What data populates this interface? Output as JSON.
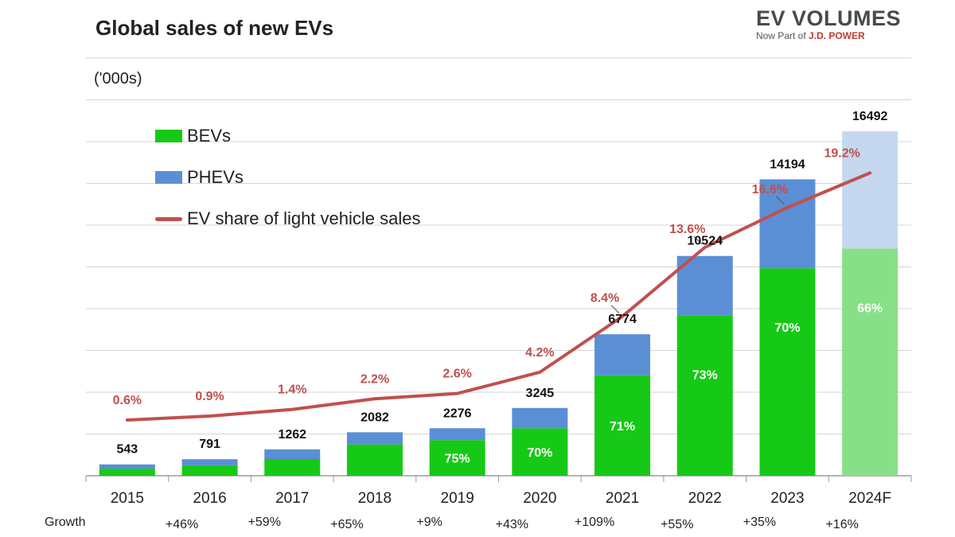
{
  "header": {
    "title": "Global sales of new EVs",
    "units": "('000s)"
  },
  "logo": {
    "main": "EV VOLUMES",
    "sub_prefix": "Now Part of ",
    "sub_brand": "J.D. POWER"
  },
  "legend": {
    "bev": "BEVs",
    "phev": "PHEVs",
    "share": "EV share of light vehicle sales"
  },
  "growth_label": "Growth",
  "colors": {
    "bev": "#16c916",
    "phev": "#5b8fd5",
    "bev_forecast": "#87e087",
    "phev_forecast": "#c5d8ef",
    "share_line": "#c0504d"
  },
  "chart_data": {
    "type": "bar",
    "title": "Global sales of new EVs",
    "subtitle": "('000s)",
    "categories": [
      "2015",
      "2016",
      "2017",
      "2018",
      "2019",
      "2020",
      "2021",
      "2022",
      "2023",
      "2024F"
    ],
    "totals": [
      543,
      791,
      1262,
      2082,
      2276,
      3245,
      6774,
      10524,
      14194,
      16492
    ],
    "total_labels": [
      "543",
      "791",
      "1262",
      "2082",
      "2276",
      "3245",
      "6774",
      "10524",
      "14194",
      "16492"
    ],
    "series": [
      {
        "name": "BEVs",
        "values": [
          340,
          500,
          800,
          1500,
          1707,
          2272,
          4810,
          7683,
          9936,
          10885
        ]
      },
      {
        "name": "PHEVs",
        "values": [
          203,
          291,
          462,
          582,
          569,
          973,
          1964,
          2841,
          4258,
          5607
        ]
      }
    ],
    "bev_share_labels": [
      "",
      "",
      "",
      "",
      "75%",
      "70%",
      "71%",
      "73%",
      "70%",
      "66%"
    ],
    "ev_share": {
      "name": "EV share of light vehicle sales",
      "values": [
        0.6,
        0.9,
        1.4,
        2.2,
        2.6,
        4.2,
        8.4,
        13.6,
        16.6,
        19.2
      ],
      "labels": [
        "0.6%",
        "0.9%",
        "1.4%",
        "2.2%",
        "2.6%",
        "4.2%",
        "8.4%",
        "13.6%",
        "16.6%",
        "19.2%"
      ]
    },
    "growth": [
      "+46%",
      "+59%",
      "+65%",
      "+9%",
      "+43%",
      "+109%",
      "+55%",
      "+35%",
      "+16%"
    ],
    "forecast_index": 9,
    "ylim": [
      0,
      20000
    ],
    "grid": true,
    "legend_position": "top-left"
  }
}
